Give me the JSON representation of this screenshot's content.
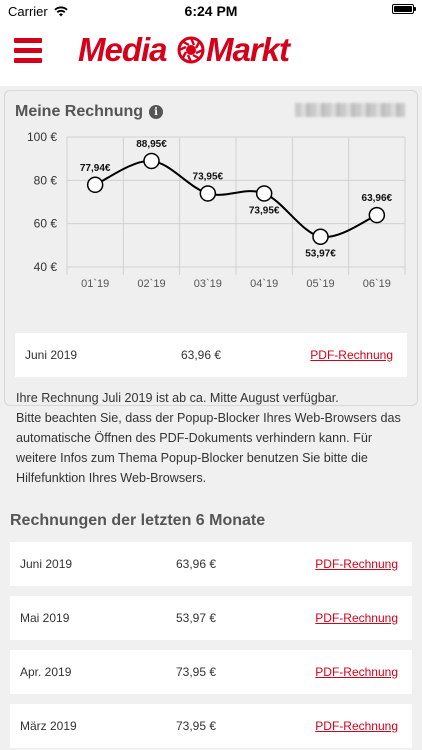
{
  "status_bar": {
    "carrier": "Carrier",
    "time": "6:24 PM"
  },
  "brand": {
    "logo_text": "MediaMarkt",
    "color": "#d50019"
  },
  "invoice_section": {
    "title": "Meine Rechnung",
    "account_number": ""
  },
  "chart_data": {
    "type": "line",
    "categories": [
      "01`19",
      "02`19",
      "03`19",
      "04`19",
      "05`19",
      "06`19"
    ],
    "values": [
      77.94,
      88.95,
      73.95,
      73.95,
      53.97,
      63.96
    ],
    "data_labels": [
      "77,94€",
      "88,95€",
      "73,95€",
      "73,95€",
      "53,97€",
      "63,96€"
    ],
    "yticks": [
      "100 €",
      "80 €",
      "60 €",
      "40 €"
    ],
    "ylim": [
      40,
      100
    ],
    "grid": true
  },
  "current_invoice": {
    "month": "Juni 2019",
    "amount": "63,96 €",
    "link": "PDF-Rechnung"
  },
  "notice": {
    "line1": "Ihre Rechnung Juli 2019 ist ab ca. Mitte August verfügbar.",
    "line2": "Bitte beachten Sie, dass der Popup-Blocker Ihres Web-Browsers das automatische Öffnen des PDF-Dokuments verhindern kann. Für weitere Infos zum Thema Popup-Blocker benutzen Sie bitte die Hilfefunktion Ihres Web-Browsers."
  },
  "history": {
    "title": "Rechnungen der letzten 6 Monate",
    "rows": [
      {
        "month": "Juni 2019",
        "amount": "63,96 €",
        "link": "PDF-Rechnung"
      },
      {
        "month": "Mai 2019",
        "amount": "53,97 €",
        "link": "PDF-Rechnung"
      },
      {
        "month": "Apr. 2019",
        "amount": "73,95 €",
        "link": "PDF-Rechnung"
      },
      {
        "month": "März 2019",
        "amount": "73,95 €",
        "link": "PDF-Rechnung"
      }
    ]
  }
}
